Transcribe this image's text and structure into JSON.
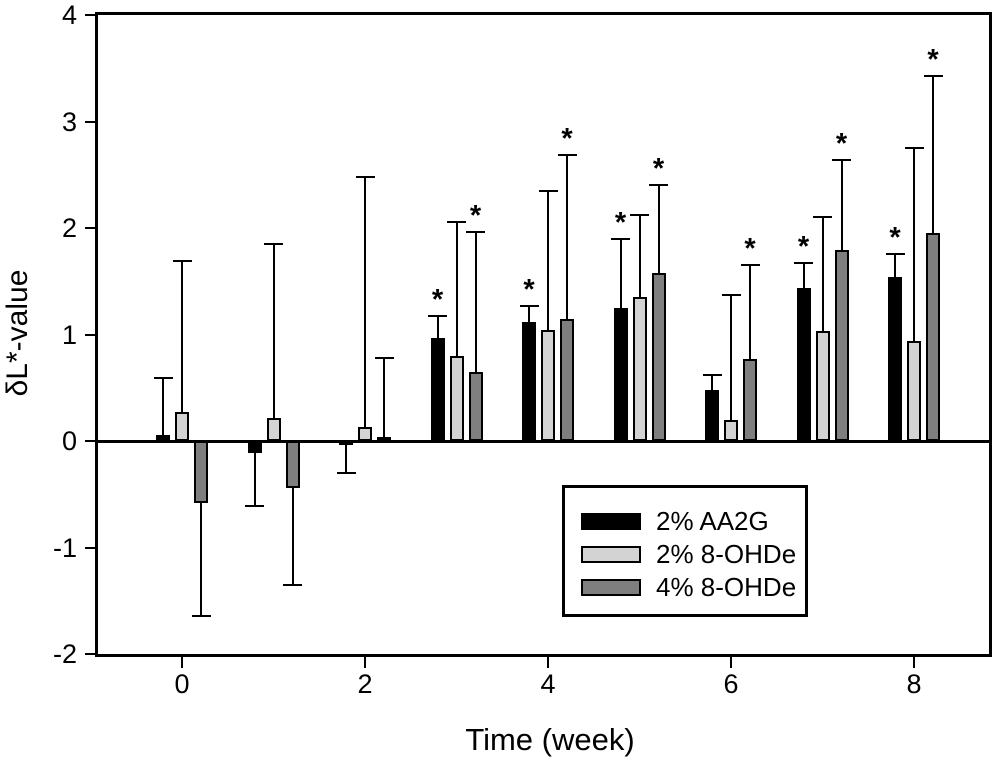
{
  "figure": {
    "background_color": "#ffffff",
    "frame_color": "#000000"
  },
  "chart_data": {
    "type": "bar",
    "title": "",
    "xlabel": "Time (week)",
    "ylabel": "δL*-value",
    "ylim": [
      -2,
      4
    ],
    "yticks": [
      -2,
      -1,
      0,
      1,
      2,
      3,
      4
    ],
    "xtick_labels": [
      0,
      2,
      4,
      6,
      8
    ],
    "weeks": [
      0,
      1,
      2,
      3,
      4,
      5,
      6,
      7,
      8
    ],
    "grid": false,
    "legend_position": "inside-bottom-right",
    "significance_marker": "*",
    "series": [
      {
        "name": "2% AA2G",
        "color": "#000000",
        "values": [
          0.06,
          -0.11,
          -0.03,
          0.97,
          1.12,
          1.25,
          0.48,
          1.44,
          1.54
        ],
        "whisker_end": [
          0.59,
          -0.61,
          -0.3,
          1.17,
          1.27,
          1.9,
          0.62,
          1.67,
          1.76
        ],
        "significant": [
          false,
          false,
          false,
          true,
          true,
          true,
          false,
          true,
          true
        ]
      },
      {
        "name": "2% 8-OHDe",
        "color": "#d3d3d3",
        "values": [
          0.27,
          0.22,
          0.13,
          0.8,
          1.04,
          1.35,
          0.2,
          1.03,
          0.94
        ],
        "whisker_end": [
          1.69,
          1.85,
          2.48,
          2.06,
          2.35,
          2.12,
          1.37,
          2.1,
          2.75
        ],
        "significant": [
          false,
          false,
          false,
          false,
          false,
          false,
          false,
          false,
          false
        ]
      },
      {
        "name": "4% 8-OHDe",
        "color": "#7f7f7f",
        "values": [
          -0.58,
          -0.44,
          0.04,
          0.65,
          1.15,
          1.58,
          0.77,
          1.79,
          1.95
        ],
        "whisker_end": [
          -1.64,
          -1.35,
          0.78,
          1.96,
          2.69,
          2.4,
          1.65,
          2.64,
          3.43
        ],
        "significant": [
          false,
          false,
          false,
          true,
          true,
          true,
          true,
          true,
          true
        ]
      }
    ]
  }
}
